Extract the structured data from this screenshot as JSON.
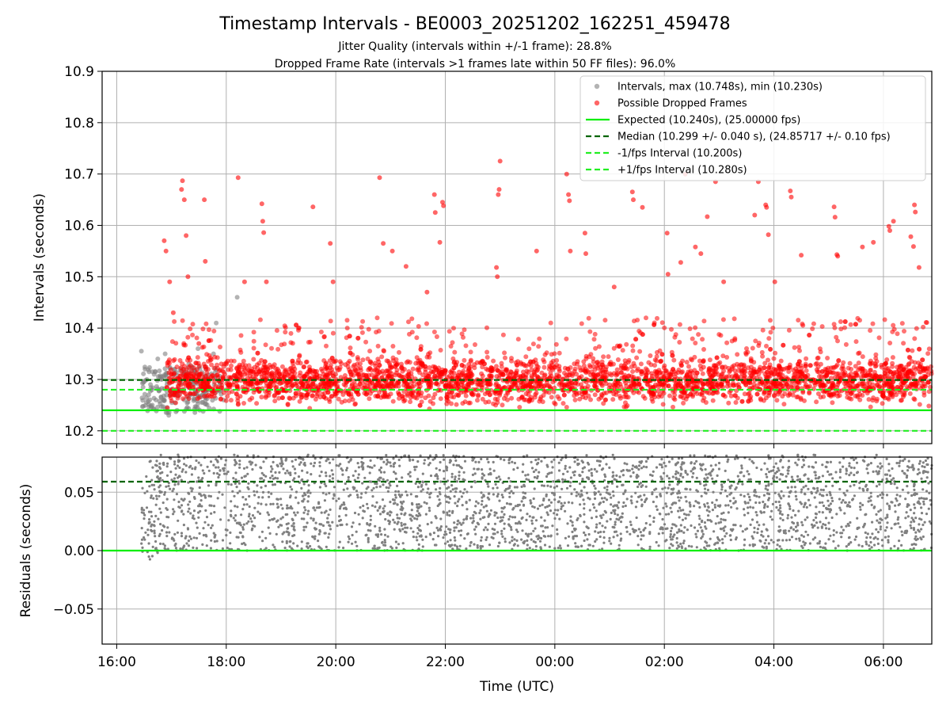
{
  "title": "Timestamp Intervals - BE0003_20251202_162251_459478",
  "subtitle_1": "Jitter Quality (intervals within +/-1 frame): 28.8%",
  "subtitle_2": "Dropped Frame Rate (intervals >1 frames late within 50 FF files): 96.0%",
  "colors": {
    "intervals": "#808080",
    "dropped": "#ff0000",
    "expected": "#00ee00",
    "median": "#006400",
    "band": "#22ee22",
    "grid": "#b0b0b0",
    "residual_points": "#808080"
  },
  "chart_data": [
    {
      "type": "scatter",
      "panel": "top",
      "ylabel": "Intervals (seconds)",
      "xlim": [
        "15:44",
        "06:53"
      ],
      "ylim": [
        10.175,
        10.9
      ],
      "yticks": [
        10.2,
        10.3,
        10.4,
        10.5,
        10.6,
        10.7,
        10.8,
        10.9
      ],
      "ytick_labels": [
        "10.2",
        "10.3",
        "10.4",
        "10.5",
        "10.6",
        "10.7",
        "10.8",
        "10.9"
      ],
      "grid": true,
      "legend_position": "top-right",
      "series": [
        {
          "name": "Intervals, max (10.748s), min (10.230s)",
          "kind": "scatter",
          "color": "#808080",
          "points": [
            [
              "16:27",
              10.355
            ],
            [
              "16:29",
              10.248
            ],
            [
              "16:31",
              10.32
            ],
            [
              "16:33",
              10.3
            ],
            [
              "16:35",
              10.27
            ],
            [
              "16:37",
              10.29
            ],
            [
              "16:39",
              10.25
            ],
            [
              "16:41",
              10.31
            ],
            [
              "16:43",
              10.26
            ],
            [
              "16:45",
              10.34
            ],
            [
              "16:47",
              10.28
            ],
            [
              "16:49",
              10.3
            ],
            [
              "16:51",
              10.26
            ],
            [
              "16:53",
              10.35
            ],
            [
              "16:55",
              10.29
            ],
            [
              "16:57",
              10.23
            ],
            [
              "16:59",
              10.28
            ],
            [
              "17:02",
              10.31
            ],
            [
              "17:05",
              10.27
            ],
            [
              "17:09",
              10.3
            ],
            [
              "17:14",
              10.26
            ],
            [
              "17:19",
              10.33
            ],
            [
              "17:24",
              10.29
            ],
            [
              "17:29",
              10.36
            ],
            [
              "17:34",
              10.27
            ],
            [
              "17:38",
              10.32
            ],
            [
              "17:42",
              10.28
            ],
            [
              "17:46",
              10.35
            ],
            [
              "17:49",
              10.41
            ],
            [
              "17:53",
              10.29
            ],
            [
              "17:57",
              10.26
            ],
            [
              "18:12",
              10.46
            ]
          ]
        },
        {
          "name": "Possible Dropped Frames",
          "kind": "scatter",
          "color": "#ff0000",
          "outliers": [
            [
              "16:52",
              10.57
            ],
            [
              "16:54",
              10.55
            ],
            [
              "16:58",
              10.49
            ],
            [
              "17:02",
              10.43
            ],
            [
              "17:11",
              10.67
            ],
            [
              "17:12",
              10.687
            ],
            [
              "17:14",
              10.65
            ],
            [
              "17:16",
              10.58
            ],
            [
              "17:18",
              10.5
            ],
            [
              "17:30",
              10.37
            ],
            [
              "17:36",
              10.65
            ],
            [
              "17:37",
              10.53
            ],
            [
              "18:13",
              10.693
            ],
            [
              "18:20",
              10.49
            ],
            [
              "18:39",
              10.642
            ],
            [
              "18:40",
              10.608
            ],
            [
              "18:41",
              10.586
            ],
            [
              "18:44",
              10.49
            ],
            [
              "19:35",
              10.636
            ],
            [
              "19:54",
              10.565
            ],
            [
              "19:57",
              10.49
            ],
            [
              "20:48",
              10.693
            ],
            [
              "20:52",
              10.565
            ],
            [
              "21:02",
              10.55
            ],
            [
              "21:17",
              10.52
            ],
            [
              "21:40",
              10.47
            ],
            [
              "21:48",
              10.66
            ],
            [
              "21:49",
              10.625
            ],
            [
              "21:54",
              10.567
            ],
            [
              "21:57",
              10.645
            ],
            [
              "21:58",
              10.638
            ],
            [
              "22:56",
              10.518
            ],
            [
              "22:57",
              10.5
            ],
            [
              "22:58",
              10.66
            ],
            [
              "22:59",
              10.67
            ],
            [
              "23:00",
              10.725
            ],
            [
              "23:40",
              10.55
            ],
            [
              "00:13",
              10.7
            ],
            [
              "00:15",
              10.66
            ],
            [
              "00:16",
              10.648
            ],
            [
              "00:17",
              10.55
            ],
            [
              "00:33",
              10.585
            ],
            [
              "00:34",
              10.545
            ],
            [
              "01:05",
              10.48
            ],
            [
              "01:25",
              10.665
            ],
            [
              "01:26",
              10.65
            ],
            [
              "01:36",
              10.635
            ],
            [
              "02:03",
              10.585
            ],
            [
              "02:04",
              10.505
            ],
            [
              "02:18",
              10.528
            ],
            [
              "02:23",
              10.7
            ],
            [
              "02:34",
              10.558
            ],
            [
              "02:40",
              10.545
            ],
            [
              "02:47",
              10.617
            ],
            [
              "02:56",
              10.685
            ],
            [
              "03:05",
              10.49
            ],
            [
              "03:39",
              10.62
            ],
            [
              "03:43",
              10.685
            ],
            [
              "03:51",
              10.64
            ],
            [
              "03:52",
              10.635
            ],
            [
              "03:54",
              10.582
            ],
            [
              "04:01",
              10.49
            ],
            [
              "04:18",
              10.667
            ],
            [
              "04:19",
              10.655
            ],
            [
              "04:30",
              10.542
            ],
            [
              "05:06",
              10.636
            ],
            [
              "05:07",
              10.616
            ],
            [
              "05:09",
              10.543
            ],
            [
              "05:10",
              10.54
            ],
            [
              "05:37",
              10.558
            ],
            [
              "05:49",
              10.567
            ],
            [
              "06:06",
              10.598
            ],
            [
              "06:07",
              10.59
            ],
            [
              "06:11",
              10.608
            ],
            [
              "06:30",
              10.578
            ],
            [
              "06:33",
              10.559
            ],
            [
              "06:34",
              10.64
            ],
            [
              "06:35",
              10.626
            ],
            [
              "06:39",
              10.518
            ]
          ],
          "note_bulk": "dense band of thousands of points between 10.24 and 10.40 spanning 16:55 to 06:53"
        },
        {
          "name": "Expected (10.240s), (25.00000 fps)",
          "kind": "hline",
          "y": 10.24,
          "color": "#00ee00",
          "style": "solid"
        },
        {
          "name": "Median (10.299 +/- 0.040 s), (24.85717 +/- 0.10 fps)",
          "kind": "hline",
          "y": 10.299,
          "color": "#006400",
          "style": "dashed"
        },
        {
          "name": "-1/fps Interval (10.200s)",
          "kind": "hline",
          "y": 10.2,
          "color": "#22ee22",
          "style": "dashed"
        },
        {
          "name": "+1/fps Interval (10.280s)",
          "kind": "hline",
          "y": 10.28,
          "color": "#22ee22",
          "style": "dashed"
        }
      ]
    },
    {
      "type": "scatter",
      "panel": "bottom",
      "xlabel": "Time (UTC)",
      "ylabel": "Residuals (seconds)",
      "xlim": [
        "15:44",
        "06:53"
      ],
      "ylim": [
        -0.08,
        0.08
      ],
      "yticks": [
        -0.05,
        0.0,
        0.05
      ],
      "ytick_labels": [
        "−0.05",
        "0.00",
        "0.05"
      ],
      "xticks": [
        "16:00",
        "18:00",
        "20:00",
        "22:00",
        "00:00",
        "02:00",
        "04:00",
        "06:00"
      ],
      "grid": true,
      "series": [
        {
          "name": "residuals",
          "kind": "scatter",
          "color": "#808080",
          "range": [
            -0.01,
            0.08
          ],
          "note": "thousands of residual points from 16:27 to 06:53"
        },
        {
          "name": "expected",
          "kind": "hline",
          "y": 0.0,
          "color": "#00ee00",
          "style": "solid"
        },
        {
          "name": "median",
          "kind": "hline",
          "y": 0.059,
          "color": "#006400",
          "style": "dashed"
        }
      ]
    }
  ]
}
